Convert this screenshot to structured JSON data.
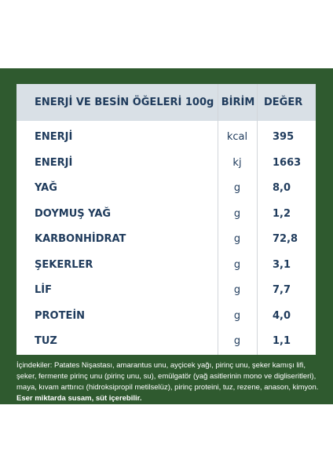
{
  "table": {
    "header": {
      "name": "ENERJİ VE BESİN ÖĞELERİ 100g",
      "unit": "BİRİM",
      "value": "DEĞER"
    },
    "rows": [
      {
        "name": "ENERJİ",
        "unit": "kcal",
        "value": "395"
      },
      {
        "name": "ENERJİ",
        "unit": "kj",
        "value": "1663"
      },
      {
        "name": "YAĞ",
        "unit": "g",
        "value": "8,0"
      },
      {
        "name": "DOYMUŞ YAĞ",
        "unit": "g",
        "value": "1,2"
      },
      {
        "name": "KARBONHİDRAT",
        "unit": "g",
        "value": "72,8"
      },
      {
        "name": "ŞEKERLER",
        "unit": "g",
        "value": "3,1"
      },
      {
        "name": "LİF",
        "unit": "g",
        "value": "7,7"
      },
      {
        "name": "PROTEİN",
        "unit": "g",
        "value": "4,0"
      },
      {
        "name": "TUZ",
        "unit": "g",
        "value": "1,1"
      }
    ]
  },
  "ingredients": {
    "text": "İçindekiler: Patates Nişastası, amarantus unu, ayçicek yağı, pirinç unu, şeker kamışı lifi, şeker, fermente pirinç unu (pirinç unu, su), emülgatör (yağ asitlerinin mono ve digliseritleri), maya, kıvam arttırıcı (hidroksipropil metilselüz), pirinç proteini, tuz, rezene, anason, kimyon.",
    "bold_note": "Eser miktarda susam, süt içerebilir."
  },
  "colors": {
    "panel": "#2f5a2f",
    "header_bg": "#d9e0e6",
    "text": "#1f3b5c"
  }
}
